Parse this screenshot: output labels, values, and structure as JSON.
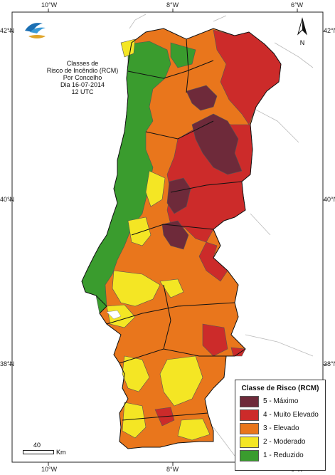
{
  "title_lines": [
    "Classes de",
    "Risco de Incêndio (RCM)",
    "Por Concelho",
    "Dia 16-07-2014",
    "12 UTC"
  ],
  "ticks": {
    "top": [
      "10°W",
      "8°W",
      "6°W"
    ],
    "bottom": [
      "10°W",
      "8°W",
      "6°W"
    ],
    "left": [
      "42°N",
      "40°N",
      "38°N"
    ],
    "right": [
      "42°N",
      "40°N",
      "38°N"
    ]
  },
  "north_label": "N",
  "scale": {
    "value": "40",
    "unit": "Km"
  },
  "legend": {
    "title": "Classe de Risco (RCM)",
    "classes": [
      {
        "label": "5 - Máximo",
        "color": "#6e2a3a"
      },
      {
        "label": "4 - Muito Elevado",
        "color": "#cc2b2a"
      },
      {
        "label": "3 - Elevado",
        "color": "#e9761c"
      },
      {
        "label": "2 - Moderado",
        "color": "#f4e624"
      },
      {
        "label": "1 - Reduzido",
        "color": "#3a9c2e"
      }
    ]
  },
  "colors": {
    "sea": "#ffffff",
    "border": "#222222",
    "spain": "#ffffff"
  }
}
